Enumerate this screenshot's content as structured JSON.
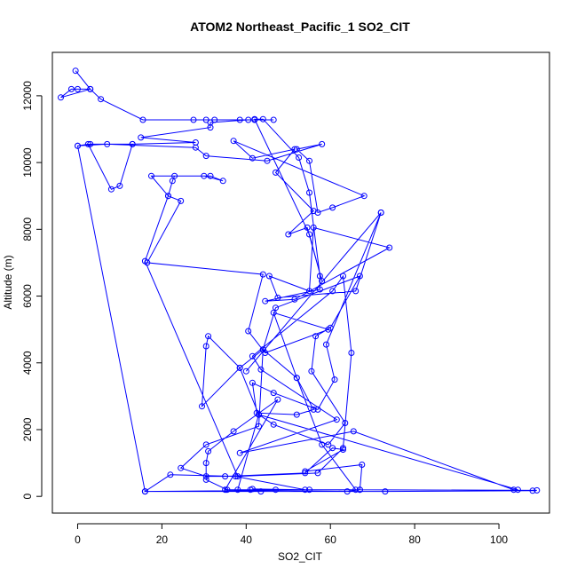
{
  "chart_data": {
    "type": "line",
    "title": "ATOM2 Northeast_Pacific_1 SO2_CIT",
    "xlabel": "SO2_CIT",
    "ylabel": "Altitude (m)",
    "xlim": [
      -6,
      112
    ],
    "ylim": [
      -500,
      13300
    ],
    "xticks": [
      0,
      20,
      40,
      60,
      80,
      100
    ],
    "yticks": [
      0,
      2000,
      4000,
      6000,
      8000,
      10000,
      12000
    ],
    "grid": false,
    "legend": "none",
    "color": "#0000ff",
    "series": [
      {
        "points": [
          [
            -0.5,
            12750
          ],
          [
            3,
            12200
          ],
          [
            0,
            12200
          ],
          [
            -1.5,
            12200
          ],
          [
            -4,
            11950
          ],
          [
            3,
            12200
          ],
          [
            5.5,
            11900
          ],
          [
            15.5,
            11280
          ],
          [
            27.5,
            11280
          ],
          [
            30.5,
            11280
          ],
          [
            32.5,
            11280
          ],
          [
            38.5,
            11280
          ],
          [
            42,
            11280
          ],
          [
            46.5,
            11280
          ],
          [
            40.5,
            11280
          ],
          [
            31.5,
            11200
          ],
          [
            31.5,
            11050
          ],
          [
            15,
            10750
          ],
          [
            28,
            10600
          ],
          [
            13,
            10550
          ],
          [
            3,
            10550
          ],
          [
            0,
            10500
          ],
          [
            7,
            10550
          ],
          [
            28,
            10450
          ],
          [
            30.5,
            10200
          ],
          [
            45,
            10050
          ],
          [
            58,
            10550
          ],
          [
            52,
            10400
          ],
          [
            55,
            10050
          ],
          [
            57,
            8500
          ],
          [
            60.5,
            8650
          ],
          [
            68,
            9000
          ],
          [
            37,
            10650
          ],
          [
            41.5,
            10130
          ],
          [
            51.5,
            10400
          ],
          [
            47,
            9700
          ],
          [
            56,
            8550
          ],
          [
            50,
            7850
          ],
          [
            54.5,
            8050
          ],
          [
            58,
            6450
          ],
          [
            55,
            7850
          ],
          [
            42,
            11300
          ],
          [
            44,
            11300
          ],
          [
            52.5,
            10150
          ],
          [
            55,
            9100
          ],
          [
            57.5,
            6600
          ],
          [
            57.5,
            6200
          ],
          [
            44.5,
            5850
          ],
          [
            51.5,
            5900
          ],
          [
            74,
            7450
          ],
          [
            56,
            8050
          ],
          [
            55,
            6150
          ],
          [
            45.5,
            6600
          ],
          [
            47.5,
            5950
          ],
          [
            66,
            6150
          ],
          [
            72,
            8500
          ],
          [
            40,
            3750
          ],
          [
            72,
            8500
          ],
          [
            59,
            4550
          ],
          [
            61,
            3500
          ],
          [
            57,
            2600
          ],
          [
            46.5,
            3100
          ],
          [
            41.5,
            3400
          ],
          [
            42.5,
            2500
          ],
          [
            52,
            2450
          ],
          [
            56,
            2600
          ],
          [
            52,
            3550
          ],
          [
            44,
            4400
          ],
          [
            47,
            5650
          ],
          [
            67,
            6600
          ],
          [
            60,
            5050
          ],
          [
            56.5,
            4800
          ],
          [
            55.5,
            3750
          ],
          [
            63.5,
            2200
          ],
          [
            59.5,
            1550
          ],
          [
            46.5,
            2150
          ],
          [
            43,
            2450
          ],
          [
            38.5,
            3850
          ],
          [
            31,
            4800
          ],
          [
            30.5,
            4500
          ],
          [
            29.5,
            2700
          ],
          [
            38.5,
            3850
          ],
          [
            44,
            4400
          ],
          [
            43,
            2100
          ],
          [
            30.5,
            1550
          ],
          [
            24.5,
            850
          ],
          [
            30.5,
            600
          ],
          [
            35,
            600
          ],
          [
            54,
            700
          ],
          [
            60.5,
            1450
          ],
          [
            63,
            1400
          ],
          [
            54,
            750
          ],
          [
            67.5,
            950
          ],
          [
            67,
            200
          ],
          [
            64,
            150
          ],
          [
            41,
            200
          ],
          [
            55,
            200
          ],
          [
            67,
            200
          ],
          [
            109,
            180
          ],
          [
            108,
            170
          ],
          [
            73,
            150
          ],
          [
            43.5,
            150
          ],
          [
            16,
            150
          ],
          [
            22,
            650
          ],
          [
            37.5,
            600
          ],
          [
            54,
            200
          ],
          [
            41.5,
            220
          ],
          [
            47,
            200
          ],
          [
            35,
            200
          ],
          [
            47.5,
            2900
          ],
          [
            37,
            1950
          ],
          [
            31,
            1350
          ],
          [
            30.5,
            1000
          ],
          [
            30.5,
            500
          ],
          [
            35.5,
            200
          ],
          [
            38,
            200
          ],
          [
            43,
            2450
          ],
          [
            104.5,
            200
          ],
          [
            103.5,
            200
          ],
          [
            65.5,
            1950
          ],
          [
            38.5,
            1300
          ],
          [
            61.5,
            2300
          ],
          [
            43.5,
            3800
          ],
          [
            41.5,
            4200
          ],
          [
            60.5,
            6150
          ],
          [
            63,
            6600
          ],
          [
            65,
            4300
          ],
          [
            63,
            1450
          ],
          [
            57,
            700
          ],
          [
            38,
            600
          ],
          [
            16,
            7050
          ],
          [
            21.5,
            9000
          ],
          [
            17.5,
            9600
          ],
          [
            31.5,
            9600
          ],
          [
            34.5,
            9450
          ],
          [
            30,
            9600
          ],
          [
            23,
            9600
          ],
          [
            22.5,
            9450
          ],
          [
            21.5,
            9000
          ],
          [
            24.5,
            8850
          ],
          [
            16.5,
            7000
          ],
          [
            44,
            6650
          ],
          [
            40.5,
            4950
          ],
          [
            44.5,
            4300
          ],
          [
            59.5,
            5000
          ],
          [
            46.5,
            5500
          ],
          [
            52,
            3550
          ],
          [
            58,
            1550
          ],
          [
            66,
            200
          ],
          [
            16,
            150
          ],
          [
            0,
            10500
          ],
          [
            2.5,
            10550
          ],
          [
            8,
            9200
          ],
          [
            10,
            9300
          ],
          [
            13,
            10550
          ]
        ]
      }
    ]
  }
}
